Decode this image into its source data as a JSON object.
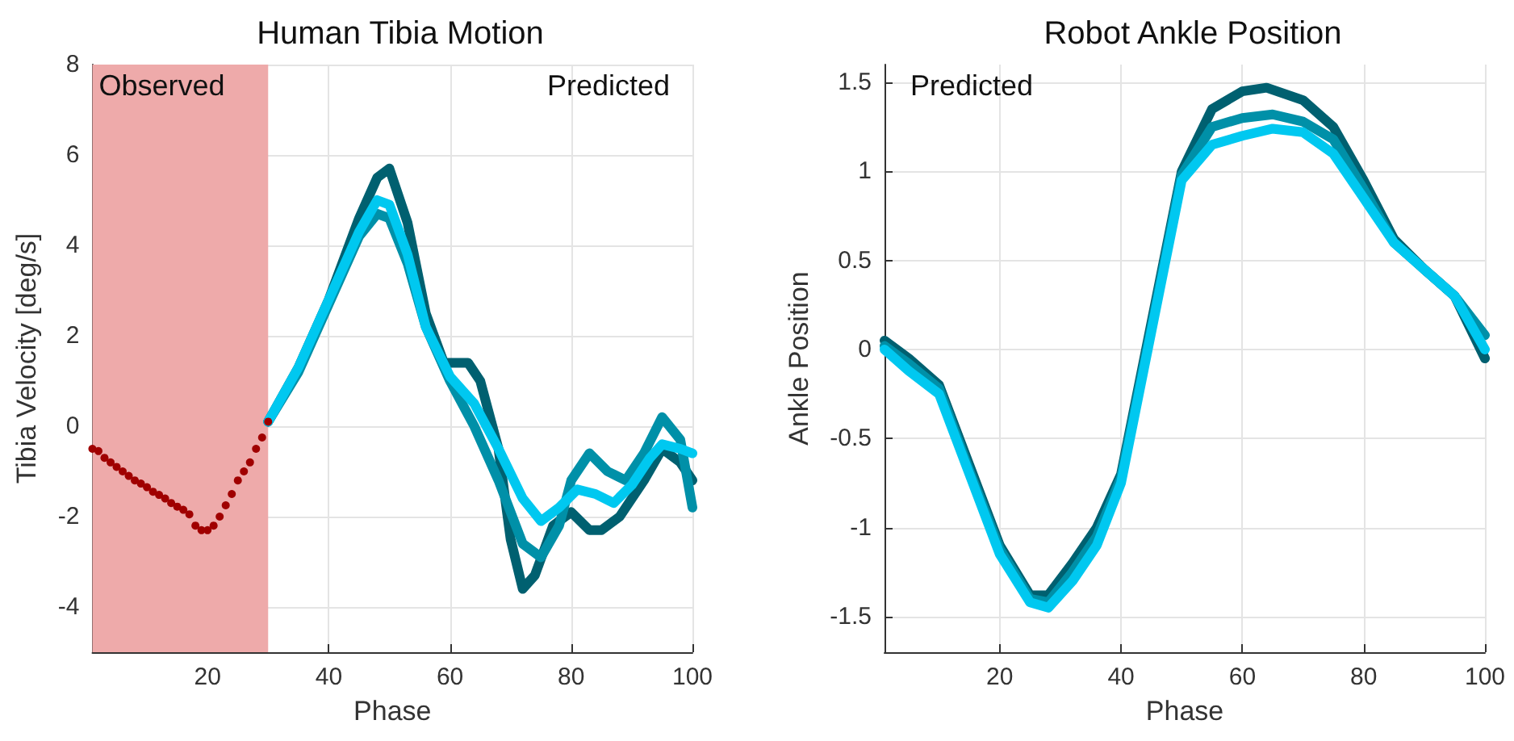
{
  "chart_data": [
    {
      "type": "line",
      "title": "Human Tibia Motion",
      "xlabel": "Phase",
      "ylabel": "Tibia Velocity [deg/s]",
      "xlim": [
        1,
        100
      ],
      "xticks": [
        20,
        40,
        60,
        80,
        100
      ],
      "ylim": [
        -5,
        8
      ],
      "yticks": [
        -4,
        -2,
        0,
        2,
        4,
        6,
        8
      ],
      "grid": true,
      "annotations": [
        "Predicted"
      ],
      "bands": [
        {
          "axis": "x",
          "from": 1,
          "to": 30,
          "label": "Observed",
          "color": "#eeaaaa"
        }
      ],
      "series": [
        {
          "type": "scatter",
          "marker": "circle",
          "color": "#a00000",
          "x": [
            1,
            2,
            3,
            4,
            5,
            6,
            7,
            8,
            9,
            10,
            11,
            12,
            13,
            14,
            15,
            16,
            17,
            18,
            19,
            20,
            21,
            22,
            23,
            24,
            25,
            26,
            27,
            28,
            29,
            30
          ],
          "values": [
            -0.5,
            -0.55,
            -0.7,
            -0.8,
            -0.9,
            -1.0,
            -1.1,
            -1.2,
            -1.27,
            -1.35,
            -1.45,
            -1.52,
            -1.6,
            -1.7,
            -1.78,
            -1.85,
            -1.95,
            -2.2,
            -2.3,
            -2.3,
            -2.2,
            -2.0,
            -1.75,
            -1.5,
            -1.2,
            -1.0,
            -0.8,
            -0.5,
            -0.25,
            0.1
          ]
        },
        {
          "marker": "none",
          "color": "#006070",
          "x": [
            30,
            35,
            40,
            45,
            48,
            50,
            53,
            56,
            59,
            63,
            65,
            68,
            70,
            72,
            74,
            77,
            80,
            83,
            85,
            88,
            92,
            95,
            98,
            100
          ],
          "values": [
            0.1,
            1.3,
            2.8,
            4.6,
            5.5,
            5.7,
            4.5,
            2.5,
            1.4,
            1.4,
            1.0,
            -0.5,
            -2.5,
            -3.6,
            -3.3,
            -2.2,
            -1.9,
            -2.3,
            -2.3,
            -2.0,
            -1.2,
            -0.5,
            -0.8,
            -1.2
          ]
        },
        {
          "marker": "none",
          "color": "#0090a8",
          "x": [
            30,
            35,
            40,
            45,
            48,
            50,
            53,
            56,
            60,
            64,
            68,
            72,
            75,
            78,
            80,
            83,
            86,
            89,
            92,
            95,
            98,
            100
          ],
          "values": [
            0.1,
            1.2,
            2.7,
            4.2,
            4.7,
            4.6,
            3.6,
            2.2,
            1.0,
            0.0,
            -1.2,
            -2.6,
            -2.9,
            -2.2,
            -1.2,
            -0.6,
            -1.0,
            -1.2,
            -0.6,
            0.2,
            -0.3,
            -1.8
          ]
        },
        {
          "marker": "none",
          "color": "#00c8f0",
          "x": [
            30,
            35,
            40,
            45,
            48,
            50,
            53,
            56,
            60,
            64,
            68,
            72,
            75,
            78,
            81,
            84,
            87,
            90,
            93,
            95,
            98,
            100
          ],
          "values": [
            0.1,
            1.3,
            2.8,
            4.3,
            5.0,
            4.9,
            3.8,
            2.2,
            1.1,
            0.5,
            -0.5,
            -1.6,
            -2.1,
            -1.8,
            -1.4,
            -1.5,
            -1.7,
            -1.3,
            -0.7,
            -0.4,
            -0.5,
            -0.6
          ]
        }
      ]
    },
    {
      "type": "line",
      "title": "Robot Ankle Position",
      "xlabel": "Phase",
      "ylabel": "Ankle Position",
      "xlim": [
        1,
        100
      ],
      "xticks": [
        20,
        40,
        60,
        80,
        100
      ],
      "ylim": [
        -1.7,
        1.6
      ],
      "yticks": [
        -1.5,
        -1,
        -0.5,
        0,
        0.5,
        1,
        1.5
      ],
      "grid": true,
      "annotations": [
        "Predicted"
      ],
      "series": [
        {
          "marker": "none",
          "color": "#006070",
          "x": [
            1,
            5,
            10,
            15,
            20,
            25,
            28,
            32,
            36,
            40,
            45,
            50,
            55,
            60,
            64,
            70,
            75,
            80,
            85,
            90,
            95,
            100
          ],
          "values": [
            0.05,
            -0.05,
            -0.2,
            -0.65,
            -1.1,
            -1.38,
            -1.38,
            -1.2,
            -1.0,
            -0.7,
            0.15,
            1.0,
            1.35,
            1.45,
            1.47,
            1.4,
            1.25,
            0.95,
            0.62,
            0.45,
            0.3,
            -0.05
          ]
        },
        {
          "marker": "none",
          "color": "#0090a8",
          "x": [
            1,
            5,
            10,
            15,
            20,
            25,
            28,
            32,
            36,
            40,
            45,
            50,
            55,
            60,
            65,
            70,
            75,
            80,
            85,
            90,
            95,
            100
          ],
          "values": [
            0.02,
            -0.08,
            -0.22,
            -0.68,
            -1.12,
            -1.4,
            -1.42,
            -1.25,
            -1.05,
            -0.72,
            0.12,
            0.98,
            1.25,
            1.3,
            1.32,
            1.28,
            1.18,
            0.9,
            0.6,
            0.45,
            0.3,
            0.08
          ]
        },
        {
          "marker": "none",
          "color": "#00c8f0",
          "x": [
            1,
            5,
            10,
            15,
            20,
            25,
            28,
            32,
            36,
            40,
            45,
            50,
            55,
            60,
            65,
            70,
            75,
            80,
            85,
            90,
            95,
            100
          ],
          "values": [
            0,
            -0.12,
            -0.25,
            -0.7,
            -1.15,
            -1.42,
            -1.45,
            -1.3,
            -1.1,
            -0.75,
            0.1,
            0.95,
            1.15,
            1.2,
            1.24,
            1.22,
            1.1,
            0.85,
            0.6,
            0.45,
            0.3,
            0.0
          ]
        }
      ]
    }
  ]
}
